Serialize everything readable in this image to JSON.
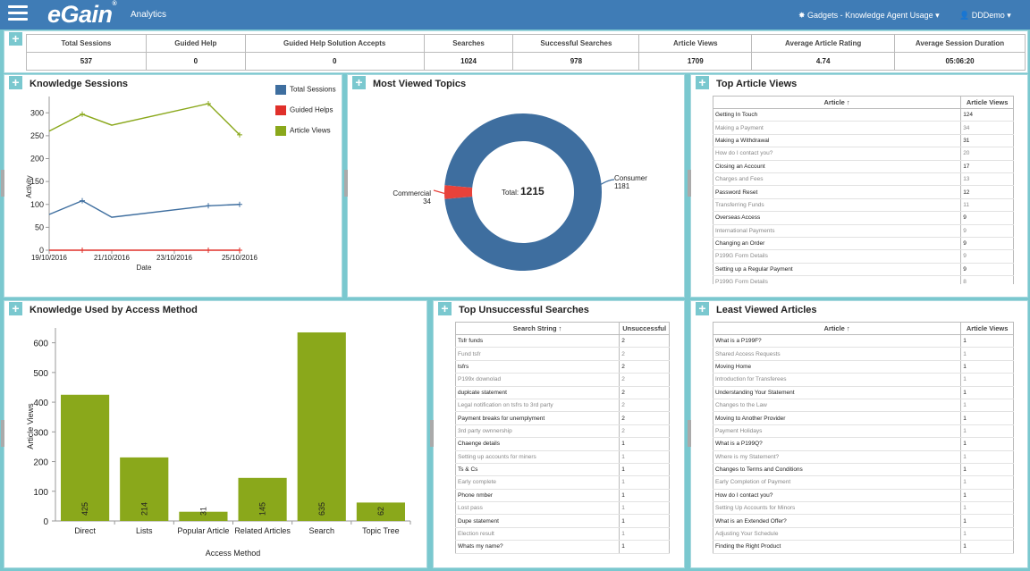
{
  "header": {
    "logo": "eGain",
    "app_name": "Analytics",
    "gadget_menu": "Gadgets - Knowledge Agent Usage",
    "user": "DDDemo"
  },
  "summary": {
    "headers": [
      "Total Sessions",
      "Guided Help",
      "Guided Help Solution Accepts",
      "Searches",
      "Successful Searches",
      "Article Views",
      "Average Article Rating",
      "Average Session Duration"
    ],
    "values": [
      "537",
      "0",
      "0",
      "1024",
      "978",
      "1709",
      "4.74",
      "05:06:20"
    ]
  },
  "knowledge_sessions": {
    "title": "Knowledge Sessions",
    "legend": [
      "Total Sessions",
      "Guided Helps",
      "Article Views"
    ],
    "colors": [
      "#3e6e9f",
      "#e0302a",
      "#8aa81b"
    ],
    "yticks": [
      "300",
      "250",
      "200",
      "150",
      "100",
      "50",
      "0"
    ],
    "xticks": [
      "19/10/2016",
      "21/10/2016",
      "23/10/2016",
      "25/10/2016"
    ],
    "ylabel": "Activity",
    "xlabel": "Date"
  },
  "most_viewed": {
    "title": "Most Viewed Topics",
    "center_label": "Total:",
    "center_value": "1215",
    "slices": [
      {
        "name": "Consumer",
        "value": "1181",
        "color": "#3e6e9f"
      },
      {
        "name": "Commercial",
        "value": "34",
        "color": "#e8423a"
      }
    ]
  },
  "top_articles": {
    "title": "Top Article Views",
    "col1": "Article ↑",
    "col2": "Article Views",
    "rows": [
      [
        "Getting In Touch",
        "124"
      ],
      [
        "Making a Payment",
        "34"
      ],
      [
        "Making a Withdrawal",
        "31"
      ],
      [
        "How do I contact you?",
        "20"
      ],
      [
        "Closing an Account",
        "17"
      ],
      [
        "Charges and Fees",
        "13"
      ],
      [
        "Password Reset",
        "12"
      ],
      [
        "Transferring Funds",
        "11"
      ],
      [
        "Overseas Access",
        "9"
      ],
      [
        "International Payments",
        "9"
      ],
      [
        "Changing an Order",
        "9"
      ],
      [
        "P199G Form Details",
        "9"
      ],
      [
        "Setting up a Regular Payment",
        "9"
      ],
      [
        "P199G Form Details",
        "8"
      ]
    ]
  },
  "access_method": {
    "title": "Knowledge Used by Access Method",
    "ylabel": "Article Views",
    "xlabel": "Access Method",
    "yticks": [
      "600",
      "500",
      "400",
      "300",
      "200",
      "100",
      "0"
    ]
  },
  "unsuccessful": {
    "title": "Top Unsuccessful Searches",
    "col1": "Search String ↑",
    "col2": "Unsuccessful",
    "rows": [
      [
        "Tsfr funds",
        "2"
      ],
      [
        "Fund tsfr",
        "2"
      ],
      [
        "tsfrs",
        "2"
      ],
      [
        "P199x downolad",
        "2"
      ],
      [
        "duplcate statement",
        "2"
      ],
      [
        "Legal notification on tsfrs to 3rd party",
        "2"
      ],
      [
        "Payment breaks for unemplyment",
        "2"
      ],
      [
        "3rd party ownnership",
        "2"
      ],
      [
        "Chaenge details",
        "1"
      ],
      [
        "Setting up accounts for miners",
        "1"
      ],
      [
        "Ts & Cs",
        "1"
      ],
      [
        "Early complete",
        "1"
      ],
      [
        "Phone nmber",
        "1"
      ],
      [
        "Lost pass",
        "1"
      ],
      [
        "Dupe statement",
        "1"
      ],
      [
        "Election result",
        "1"
      ],
      [
        "Whats my name?",
        "1"
      ]
    ]
  },
  "least_viewed": {
    "title": "Least Viewed Articles",
    "col1": "Article ↑",
    "col2": "Article Views",
    "rows": [
      [
        "What is a P199F?",
        "1"
      ],
      [
        "Shared Access Requests",
        "1"
      ],
      [
        "Moving Home",
        "1"
      ],
      [
        "Introduction for Transferees",
        "1"
      ],
      [
        "Understanding Your Statement",
        "1"
      ],
      [
        "Changes to the Law",
        "1"
      ],
      [
        "Moving to Another Provider",
        "1"
      ],
      [
        "Payment Holidays",
        "1"
      ],
      [
        "What is a P199Q?",
        "1"
      ],
      [
        "Where is my Statement?",
        "1"
      ],
      [
        "Changes to Terms and Conditions",
        "1"
      ],
      [
        "Early Completion of Payment",
        "1"
      ],
      [
        "How do I contact you?",
        "1"
      ],
      [
        "Setting Up Accounts for Minors",
        "1"
      ],
      [
        "What is an Extended Offer?",
        "1"
      ],
      [
        "Adjusting Your Schedule",
        "1"
      ],
      [
        "Finding the Right Product",
        "1"
      ]
    ]
  },
  "chart_data": [
    {
      "type": "line",
      "x": [
        "19/10/2016",
        "20/10/2016",
        "21/10/2016",
        "24/10/2016",
        "25/10/2016"
      ],
      "xticks": [
        "19/10/2016",
        "21/10/2016",
        "23/10/2016",
        "25/10/2016"
      ],
      "series": [
        {
          "name": "Total Sessions",
          "values": [
            78,
            108,
            72,
            97,
            100
          ]
        },
        {
          "name": "Guided Helps",
          "values": [
            0,
            0,
            0,
            0,
            0
          ]
        },
        {
          "name": "Article Views",
          "values": [
            260,
            297,
            273,
            320,
            252
          ]
        }
      ],
      "title": "Knowledge Sessions",
      "xlabel": "Date",
      "ylabel": "Activity",
      "ylim": [
        0,
        300
      ]
    },
    {
      "type": "pie",
      "categories": [
        "Consumer",
        "Commercial"
      ],
      "values": [
        1181,
        34
      ],
      "title": "Most Viewed Topics"
    },
    {
      "type": "bar",
      "categories": [
        "Direct",
        "Lists",
        "Popular Article",
        "Related Articles",
        "Search",
        "Topic Tree"
      ],
      "values": [
        425,
        214,
        31,
        145,
        635,
        62
      ],
      "title": "Knowledge Used by Access Method",
      "xlabel": "Access Method",
      "ylabel": "Article Views",
      "ylim": [
        0,
        650
      ]
    }
  ]
}
